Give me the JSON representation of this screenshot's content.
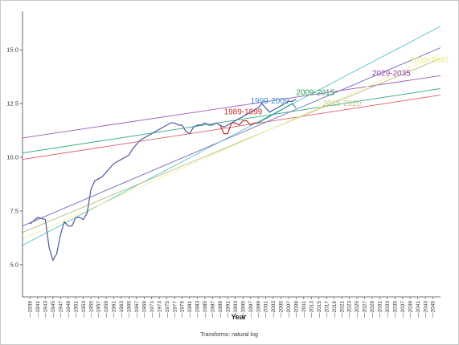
{
  "chart_data": {
    "type": "line",
    "xlabel": "Year",
    "footnote": "Transforms: natural log",
    "ylim": [
      3.5,
      16.8
    ],
    "y_ticks": [
      5.0,
      7.5,
      10.0,
      12.5,
      15.0
    ],
    "y_tick_labels": [
      "5.0",
      "7.5",
      "10.0",
      "12.5",
      "15.0"
    ],
    "x_ticks": [
      1939,
      1941,
      1943,
      1945,
      1947,
      1949,
      1951,
      1953,
      1955,
      1957,
      1959,
      1961,
      1963,
      1965,
      1967,
      1969,
      1971,
      1973,
      1975,
      1977,
      1979,
      1981,
      1983,
      1985,
      1987,
      1989,
      1991,
      1993,
      1995,
      1997,
      1999,
      2001,
      2003,
      2005,
      2007,
      2009,
      2011,
      2013,
      2015,
      2017,
      2019,
      2021,
      2023,
      2025,
      2027,
      2029,
      2031,
      2033,
      2035,
      2037,
      2039,
      2041,
      2043,
      2045
    ],
    "xlim": [
      1937,
      2047
    ],
    "series": [
      {
        "color": "#4a5a9a",
        "kind": "observed",
        "x": [
          1939,
          1941,
          1943,
          1944,
          1945,
          1946,
          1947,
          1948,
          1949,
          1950,
          1951,
          1952,
          1953,
          1954,
          1955,
          1956,
          1957,
          1958,
          1959,
          1960,
          1961,
          1962,
          1963,
          1964,
          1965,
          1966,
          1967,
          1968,
          1969,
          1970,
          1971,
          1972,
          1973,
          1974,
          1975,
          1976,
          1977,
          1978,
          1979,
          1980,
          1981,
          1982,
          1983,
          1984,
          1985,
          1986,
          1987,
          1988,
          1989,
          1990,
          1991,
          1992,
          1993,
          1994,
          1995,
          1996,
          1997,
          1998,
          1999,
          2000,
          2001,
          2002,
          2003,
          2004,
          2005,
          2006,
          2007,
          2008,
          2009
        ],
        "y": [
          6.9,
          7.2,
          7.1,
          5.8,
          5.2,
          5.5,
          6.4,
          7.0,
          6.8,
          6.8,
          7.2,
          7.2,
          7.1,
          7.4,
          8.5,
          8.9,
          9.0,
          9.1,
          9.3,
          9.5,
          9.7,
          9.8,
          9.9,
          10.0,
          10.1,
          10.4,
          10.6,
          10.8,
          10.9,
          11.0,
          11.1,
          11.2,
          11.3,
          11.4,
          11.5,
          11.6,
          11.6,
          11.5,
          11.5,
          11.2,
          11.1,
          11.4,
          11.5,
          11.5,
          11.6,
          11.5,
          11.5,
          11.6,
          11.5,
          11.4,
          11.5,
          11.6,
          11.7,
          11.8,
          11.9,
          12.0,
          12.1,
          12.2,
          12.3,
          12.5,
          12.3,
          12.1,
          12.2,
          12.3,
          12.4,
          12.5,
          12.6,
          12.6,
          12.7
        ]
      },
      {
        "color": "#1f9a8a",
        "kind": "observed",
        "x": [
          1999,
          2000,
          2001,
          2002,
          2003,
          2004,
          2005,
          2006,
          2007,
          2008,
          2009
        ],
        "y": [
          11.6,
          11.7,
          11.8,
          11.9,
          12.0,
          12.1,
          12.2,
          12.3,
          12.4,
          12.5,
          12.3
        ]
      },
      {
        "color": "#c03030",
        "kind": "observed",
        "x": [
          1989,
          1990,
          1991,
          1992,
          1993,
          1994,
          1995,
          1996,
          1997,
          1998,
          1999
        ],
        "y": [
          11.5,
          11.1,
          11.1,
          11.6,
          11.6,
          11.5,
          11.7,
          11.7,
          11.5,
          11.6,
          11.6
        ]
      },
      {
        "color": "#9b59b6",
        "kind": "trend",
        "x": [
          1937,
          2047
        ],
        "y": [
          10.9,
          13.8
        ]
      },
      {
        "color": "#2aa876",
        "kind": "trend",
        "x": [
          1937,
          2047
        ],
        "y": [
          10.2,
          13.2
        ]
      },
      {
        "color": "#e05a6a",
        "kind": "trend",
        "x": [
          1937,
          2047
        ],
        "y": [
          9.9,
          12.9
        ]
      },
      {
        "color": "#6a6ab8",
        "kind": "trend",
        "x": [
          1937,
          2047
        ],
        "y": [
          6.8,
          15.1
        ]
      },
      {
        "color": "#5ec4c8",
        "kind": "trend",
        "x": [
          1937,
          2047
        ],
        "y": [
          5.9,
          16.1
        ]
      },
      {
        "color": "#b8bb7a",
        "kind": "trend",
        "x": [
          1937,
          2047
        ],
        "y": [
          6.5,
          14.6
        ]
      },
      {
        "color": "#f3f0a0",
        "kind": "trend",
        "x": [
          1937,
          2047
        ],
        "y": [
          6.2,
          14.8
        ]
      }
    ],
    "annotations": [
      {
        "text": "1989-1999",
        "x": 1990,
        "y": 12.0,
        "color": "#c03030"
      },
      {
        "text": "1999-2009",
        "x": 1997,
        "y": 12.5,
        "color": "#3a8fc8"
      },
      {
        "text": "2009-2015",
        "x": 2009,
        "y": 12.9,
        "color": "#2a9a55"
      },
      {
        "text": "2015-2020",
        "x": 2016,
        "y": 12.4,
        "color": "#c8c890"
      },
      {
        "text": "2029-2035",
        "x": 2029,
        "y": 13.8,
        "color": "#a040a8"
      },
      {
        "text": "2035-2045",
        "x": 2039,
        "y": 14.4,
        "color": "#f0ec90"
      }
    ]
  }
}
